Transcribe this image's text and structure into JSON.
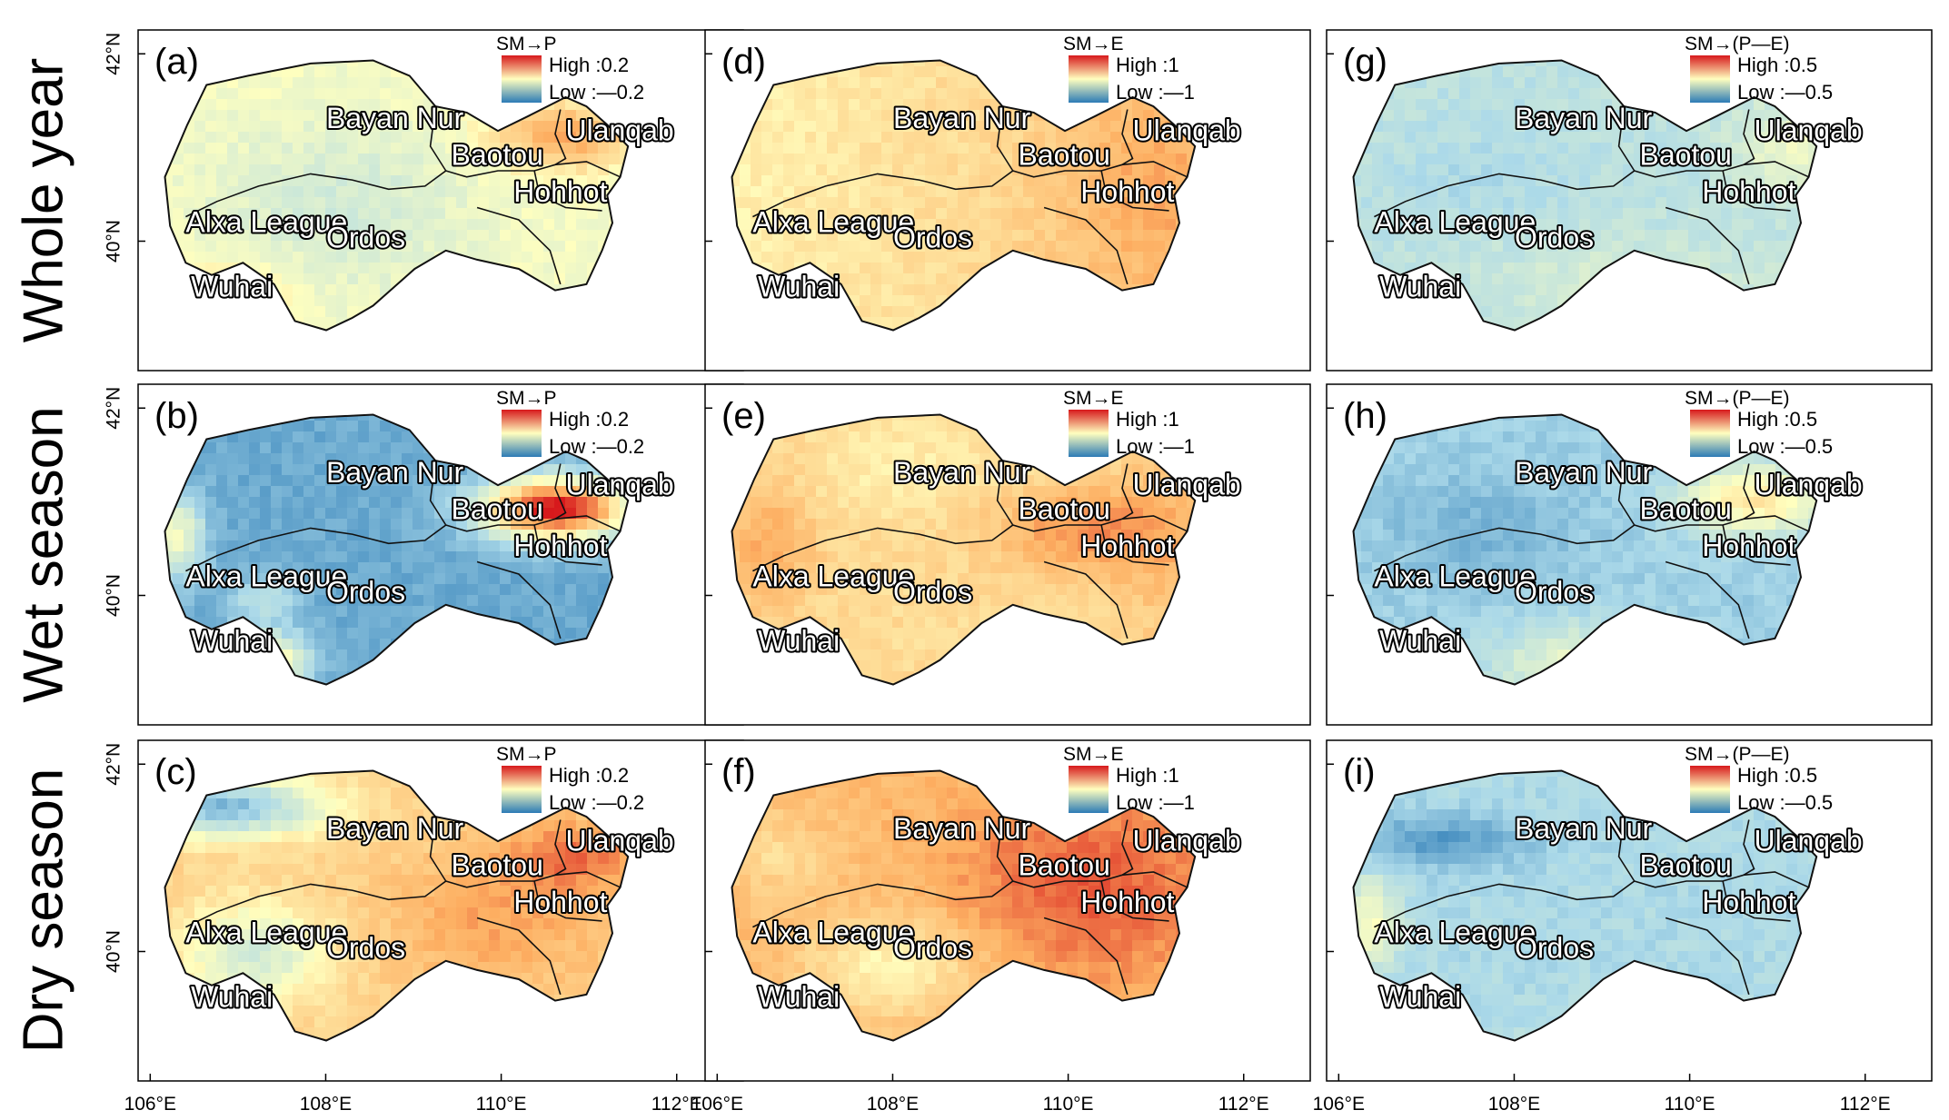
{
  "row_labels": [
    "Whole year",
    "Wet season",
    "Dry season"
  ],
  "lat_ticks": [
    "42°N",
    "40°N"
  ],
  "lon_ticks": [
    "106°E",
    "108°E",
    "110°E",
    "112°E"
  ],
  "regions": [
    "Bayan Nur",
    "Ulanqab",
    "Baotou",
    "Hohhot",
    "Alxa League",
    "Ordos",
    "Wuhai"
  ],
  "legend_colors": {
    "high": "#d7191c",
    "mid": "#ffffbf",
    "low": "#2c7bb6"
  },
  "panels": [
    {
      "id": "a",
      "letter": "(a)",
      "variable": "SM→P",
      "high": "High :0.2",
      "low": "Low :—0.2",
      "mode": "pa"
    },
    {
      "id": "d",
      "letter": "(d)",
      "variable": "SM→E",
      "high": "High :1",
      "low": "Low :—1",
      "mode": "ea"
    },
    {
      "id": "g",
      "letter": "(g)",
      "variable": "SM→(P—E)",
      "high": "High :0.5",
      "low": "Low :—0.5",
      "mode": "ga"
    },
    {
      "id": "b",
      "letter": "(b)",
      "variable": "SM→P",
      "high": "High :0.2",
      "low": "Low :—0.2",
      "mode": "pb"
    },
    {
      "id": "e",
      "letter": "(e)",
      "variable": "SM→E",
      "high": "High :1",
      "low": "Low :—1",
      "mode": "eb"
    },
    {
      "id": "h",
      "letter": "(h)",
      "variable": "SM→(P—E)",
      "high": "High :0.5",
      "low": "Low :—0.5",
      "mode": "gb"
    },
    {
      "id": "c",
      "letter": "(c)",
      "variable": "SM→P",
      "high": "High :0.2",
      "low": "Low :—0.2",
      "mode": "pc"
    },
    {
      "id": "f",
      "letter": "(f)",
      "variable": "SM→E",
      "high": "High :1",
      "low": "Low :—1",
      "mode": "ec"
    },
    {
      "id": "i",
      "letter": "(i)",
      "variable": "SM→(P—E)",
      "high": "High :0.5",
      "low": "Low :—0.5",
      "mode": "gc"
    }
  ]
}
